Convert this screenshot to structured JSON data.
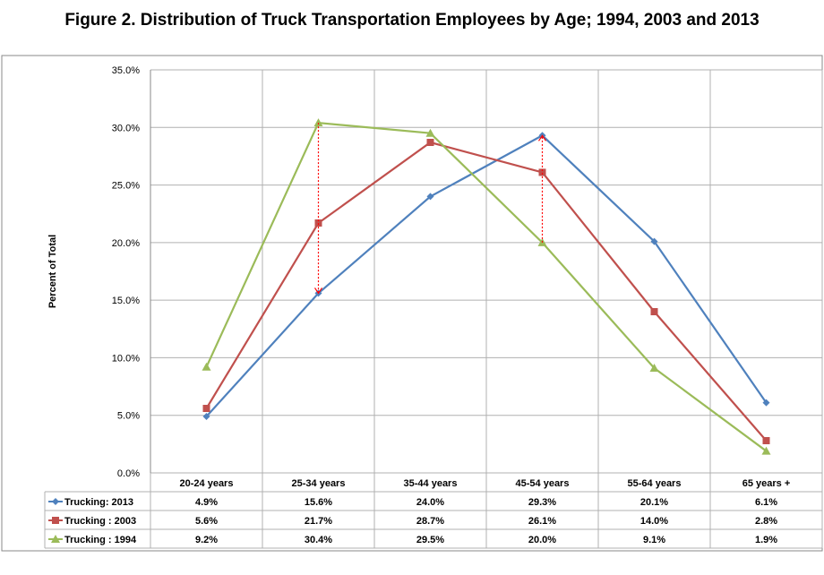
{
  "chart_data": {
    "type": "line",
    "title": "Figure 2. Distribution of Truck Transportation Employees by Age; 1994, 2003 and 2013",
    "xlabel": "",
    "ylabel": "Percent of Total",
    "ylim": [
      0,
      35
    ],
    "yticks": [
      "0.0%",
      "5.0%",
      "10.0%",
      "15.0%",
      "20.0%",
      "25.0%",
      "30.0%",
      "35.0%"
    ],
    "grid": true,
    "legend": "data-table",
    "categories": [
      "20-24 years",
      "25-34 years",
      "35-44 years",
      "45-54 years",
      "55-64 years",
      "65 years +"
    ],
    "series": [
      {
        "name": "Trucking: 2013",
        "color": "#4f81bd",
        "marker": "diamond",
        "values": [
          4.9,
          15.6,
          24.0,
          29.3,
          20.1,
          6.1
        ],
        "labels": [
          "4.9%",
          "15.6%",
          "24.0%",
          "29.3%",
          "20.1%",
          "6.1%"
        ]
      },
      {
        "name": "Trucking : 2003",
        "color": "#c0504d",
        "marker": "square",
        "values": [
          5.6,
          21.7,
          28.7,
          26.1,
          14.0,
          2.8
        ],
        "labels": [
          "5.6%",
          "21.7%",
          "28.7%",
          "26.1%",
          "14.0%",
          "2.8%"
        ]
      },
      {
        "name": "Trucking : 1994",
        "color": "#9bbb59",
        "marker": "triangle",
        "values": [
          9.2,
          30.4,
          29.5,
          20.0,
          9.1,
          1.9
        ],
        "labels": [
          "9.2%",
          "30.4%",
          "29.5%",
          "20.0%",
          "9.1%",
          "1.9%"
        ]
      }
    ],
    "annotations": [
      {
        "type": "dotted-arrow",
        "color": "#ff0000",
        "category": "25-34 years",
        "from": 30.4,
        "to": 15.6
      },
      {
        "type": "dotted-arrow",
        "color": "#ff0000",
        "category": "45-54 years",
        "from": 20.0,
        "to": 29.3
      }
    ]
  }
}
